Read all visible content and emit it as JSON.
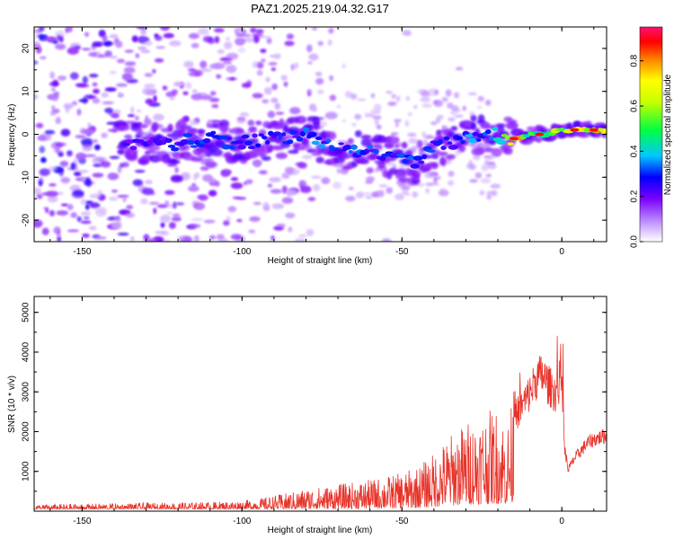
{
  "title": "PAZ1.2025.219.04.32.G17",
  "chart_data": [
    {
      "type": "heatmap",
      "xlabel": "Height of straight line (km)",
      "ylabel": "Frequency (Hz)",
      "xlim": [
        -165,
        14
      ],
      "ylim": [
        -25,
        25
      ],
      "xticks": [
        -150,
        -100,
        -50,
        0
      ],
      "yticks": [
        -20,
        -10,
        0,
        10,
        20
      ],
      "colorbar": {
        "label": "Normalized spectral amplitude",
        "range": [
          0,
          0.95
        ],
        "ticks": [
          0.0,
          0.2,
          0.4,
          0.6,
          0.8
        ]
      },
      "ridge": [
        {
          "x": -135,
          "y": -2,
          "amp": 0.25
        },
        {
          "x": -120,
          "y": -2,
          "amp": 0.28
        },
        {
          "x": -110,
          "y": -1,
          "amp": 0.3
        },
        {
          "x": -100,
          "y": -2,
          "amp": 0.3
        },
        {
          "x": -90,
          "y": -1,
          "amp": 0.28
        },
        {
          "x": -80,
          "y": 0,
          "amp": 0.32
        },
        {
          "x": -75,
          "y": -2,
          "amp": 0.35
        },
        {
          "x": -70,
          "y": -3,
          "amp": 0.3
        },
        {
          "x": -60,
          "y": -4,
          "amp": 0.32
        },
        {
          "x": -50,
          "y": -6,
          "amp": 0.3
        },
        {
          "x": -45,
          "y": -7,
          "amp": 0.35
        },
        {
          "x": -40,
          "y": -3,
          "amp": 0.3
        },
        {
          "x": -30,
          "y": -1,
          "amp": 0.35
        },
        {
          "x": -22,
          "y": 0,
          "amp": 0.4
        },
        {
          "x": -15,
          "y": -1,
          "amp": 0.85
        },
        {
          "x": -10,
          "y": 0,
          "amp": 0.6
        },
        {
          "x": -5,
          "y": 0,
          "amp": 0.6
        },
        {
          "x": 0,
          "y": 1,
          "amp": 0.6
        },
        {
          "x": 5,
          "y": 1,
          "amp": 0.7
        },
        {
          "x": 10,
          "y": 1,
          "amp": 0.75
        }
      ]
    },
    {
      "type": "line",
      "xlabel": "Height of straight line (km)",
      "ylabel": "SNR (10 * v/v)",
      "xlim": [
        -165,
        14
      ],
      "ylim": [
        0,
        5400
      ],
      "xticks": [
        -150,
        -100,
        -50,
        0
      ],
      "yticks": [
        1000,
        2000,
        3000,
        4000,
        5000
      ],
      "color": "#e8332a",
      "series": [
        {
          "x": [
            -165,
            -155,
            -145,
            -135,
            -125,
            -115,
            -105,
            -100,
            -95,
            -90,
            -85,
            -80,
            -75,
            -70,
            -65,
            -60,
            -55,
            -50,
            -45,
            -40,
            -35,
            -30,
            -25,
            -20,
            -17,
            -15,
            -12,
            -10,
            -8,
            -6,
            -4,
            -2,
            0,
            1,
            2,
            4,
            6,
            8,
            10,
            12,
            14
          ],
          "y": [
            150,
            160,
            170,
            180,
            190,
            200,
            220,
            240,
            280,
            350,
            420,
            500,
            550,
            600,
            650,
            700,
            780,
            850,
            1000,
            1300,
            1700,
            2000,
            2200,
            2300,
            2000,
            2600,
            3000,
            3300,
            3700,
            3800,
            3500,
            3300,
            3800,
            1600,
            1100,
            1400,
            1600,
            1800,
            1900,
            1950,
            2000
          ]
        }
      ]
    }
  ]
}
